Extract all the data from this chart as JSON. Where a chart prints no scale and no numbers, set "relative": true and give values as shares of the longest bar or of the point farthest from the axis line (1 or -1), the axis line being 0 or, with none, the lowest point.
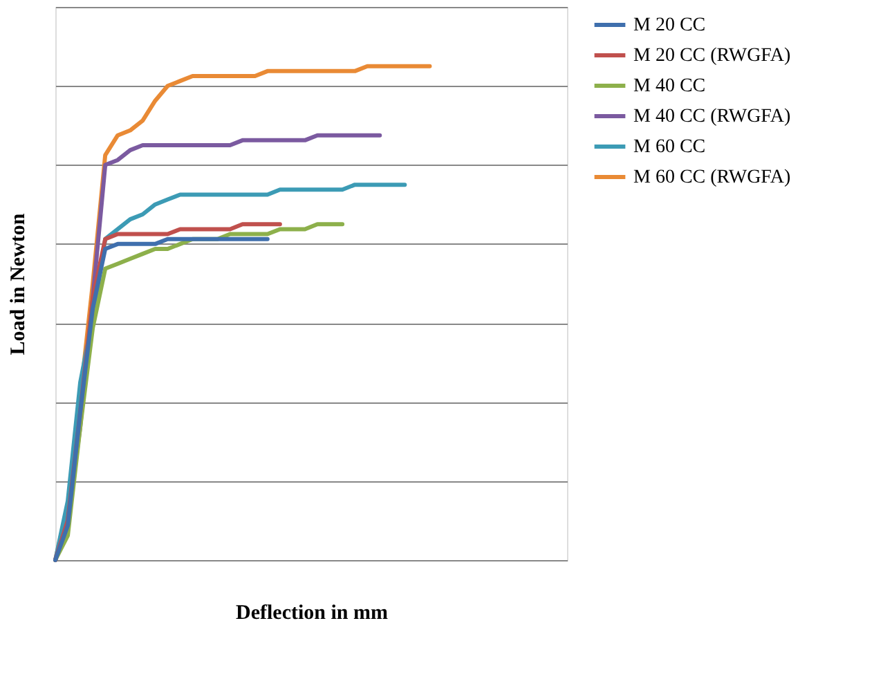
{
  "chart_data": {
    "type": "line",
    "xlabel": "Deflection in mm",
    "ylabel": "Load in Newton",
    "relative": true,
    "grid": "y",
    "legend": "right",
    "tick_labels": false,
    "marker": "none",
    "line_style": "solid",
    "categories": [
      null,
      null,
      null,
      null,
      null,
      null,
      null,
      null,
      null,
      null,
      null,
      null,
      null,
      null,
      null,
      null,
      null,
      null,
      null,
      null,
      null,
      null,
      null,
      null,
      null,
      null,
      null,
      null,
      null,
      null,
      null,
      null,
      null,
      null,
      null,
      null,
      null,
      null,
      null,
      null,
      null,
      null
    ],
    "series": [
      {
        "name": "M 20 CC",
        "color": "#3f6fad",
        "values": [
          0,
          0.07,
          0.3,
          0.51,
          0.63,
          0.64,
          0.64,
          0.64,
          0.64,
          0.65,
          0.65,
          0.65,
          0.65,
          0.65,
          0.65,
          0.65,
          0.65,
          0.65,
          null,
          null,
          null,
          null,
          null,
          null,
          null,
          null,
          null,
          null,
          null,
          null,
          null,
          null,
          null,
          null,
          null,
          null,
          null,
          null,
          null,
          null,
          null,
          null
        ]
      },
      {
        "name": "M 20 CC (RWGFA)",
        "color": "#c0504d",
        "values": [
          0,
          0.08,
          0.3,
          0.53,
          0.65,
          0.66,
          0.66,
          0.66,
          0.66,
          0.66,
          0.67,
          0.67,
          0.67,
          0.67,
          0.67,
          0.68,
          0.68,
          0.68,
          0.68,
          null,
          null,
          null,
          null,
          null,
          null,
          null,
          null,
          null,
          null,
          null,
          null,
          null,
          null,
          null,
          null,
          null,
          null,
          null,
          null,
          null,
          null,
          null
        ]
      },
      {
        "name": "M 40 CC",
        "color": "#8db04b",
        "values": [
          0,
          0.05,
          0.27,
          0.47,
          0.59,
          0.6,
          0.61,
          0.62,
          0.63,
          0.63,
          0.64,
          0.65,
          0.65,
          0.65,
          0.66,
          0.66,
          0.66,
          0.66,
          0.67,
          0.67,
          0.67,
          0.68,
          0.68,
          0.68,
          null,
          null,
          null,
          null,
          null,
          null,
          null,
          null,
          null,
          null,
          null,
          null,
          null,
          null,
          null,
          null,
          null,
          null
        ]
      },
      {
        "name": "M 40  CC (RWGFA)",
        "color": "#7b5aa0",
        "values": [
          0,
          0.08,
          0.27,
          0.53,
          0.8,
          0.81,
          0.83,
          0.84,
          0.84,
          0.84,
          0.84,
          0.84,
          0.84,
          0.84,
          0.84,
          0.85,
          0.85,
          0.85,
          0.85,
          0.85,
          0.85,
          0.86,
          0.86,
          0.86,
          0.86,
          0.86,
          0.86,
          null,
          null,
          null,
          null,
          null,
          null,
          null,
          null,
          null,
          null,
          null,
          null,
          null,
          null,
          null
        ]
      },
      {
        "name": "M 60 CC",
        "color": "#3c9bb5",
        "values": [
          0,
          0.12,
          0.36,
          0.49,
          0.65,
          0.67,
          0.69,
          0.7,
          0.72,
          0.73,
          0.74,
          0.74,
          0.74,
          0.74,
          0.74,
          0.74,
          0.74,
          0.74,
          0.75,
          0.75,
          0.75,
          0.75,
          0.75,
          0.75,
          0.76,
          0.76,
          0.76,
          0.76,
          0.76,
          null,
          null,
          null,
          null,
          null,
          null,
          null,
          null,
          null,
          null,
          null,
          null,
          null
        ]
      },
      {
        "name": "M 60 CC (RWGFA)",
        "color": "#e98a35",
        "values": [
          0,
          0.11,
          0.33,
          0.56,
          0.82,
          0.86,
          0.87,
          0.89,
          0.93,
          0.96,
          0.97,
          0.98,
          0.98,
          0.98,
          0.98,
          0.98,
          0.98,
          0.99,
          0.99,
          0.99,
          0.99,
          0.99,
          0.99,
          0.99,
          0.99,
          1.0,
          1.0,
          1.0,
          1.0,
          1.0,
          1.0,
          null,
          null,
          null,
          null,
          null,
          null,
          null,
          null,
          null,
          null,
          null
        ]
      }
    ]
  }
}
